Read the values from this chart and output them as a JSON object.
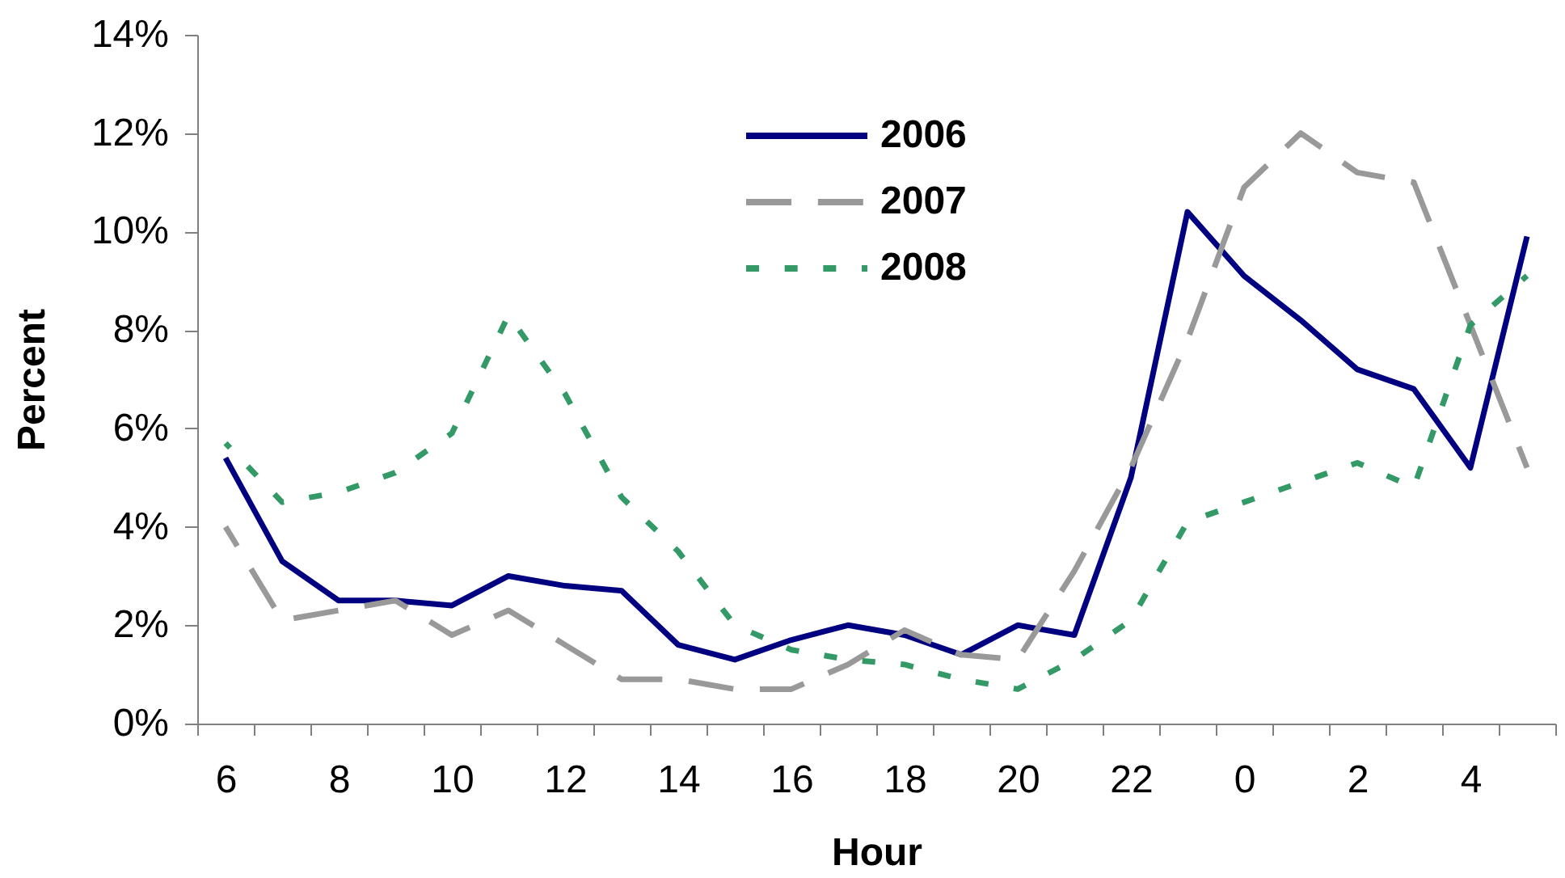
{
  "chart_data": {
    "type": "line",
    "xlabel": "Hour",
    "ylabel": "Percent",
    "categories": [
      "6",
      null,
      "8",
      null,
      "10",
      null,
      "12",
      null,
      "14",
      null,
      "16",
      null,
      "18",
      null,
      "20",
      null,
      "22",
      null,
      "0",
      null,
      "2",
      null,
      "4",
      null
    ],
    "series": [
      {
        "name": "2006",
        "color": "#000080",
        "line_style": "solid",
        "values": [
          5.4,
          3.3,
          2.5,
          2.5,
          2.4,
          3.0,
          2.8,
          2.7,
          1.6,
          1.3,
          1.7,
          2.0,
          1.8,
          1.4,
          2.0,
          1.8,
          5.0,
          10.4,
          9.1,
          8.2,
          7.2,
          6.8,
          5.2,
          9.9
        ]
      },
      {
        "name": "2007",
        "color": "#999999",
        "line_style": "dashed",
        "values": [
          4.0,
          2.1,
          2.3,
          2.5,
          1.8,
          2.3,
          1.6,
          0.9,
          0.9,
          0.7,
          0.7,
          1.2,
          1.9,
          1.4,
          1.3,
          3.1,
          5.2,
          7.8,
          10.9,
          12.0,
          11.2,
          11.0,
          8.1,
          5.2
        ]
      },
      {
        "name": "2008",
        "color": "#339966",
        "line_style": "dotted",
        "values": [
          5.7,
          4.5,
          4.7,
          5.1,
          5.9,
          8.3,
          6.7,
          4.6,
          3.5,
          2.0,
          1.5,
          1.3,
          1.2,
          0.9,
          0.7,
          1.3,
          2.1,
          4.1,
          4.5,
          4.9,
          5.3,
          4.8,
          8.1,
          9.1
        ]
      }
    ],
    "ylim": [
      0,
      14
    ],
    "yticks": [
      {
        "value": 0,
        "label": "0%"
      },
      {
        "value": 2,
        "label": "2%"
      },
      {
        "value": 4,
        "label": "4%"
      },
      {
        "value": 6,
        "label": "6%"
      },
      {
        "value": 8,
        "label": "8%"
      },
      {
        "value": 10,
        "label": "10%"
      },
      {
        "value": 12,
        "label": "12%"
      },
      {
        "value": 14,
        "label": "14%"
      }
    ],
    "legend": "top"
  }
}
